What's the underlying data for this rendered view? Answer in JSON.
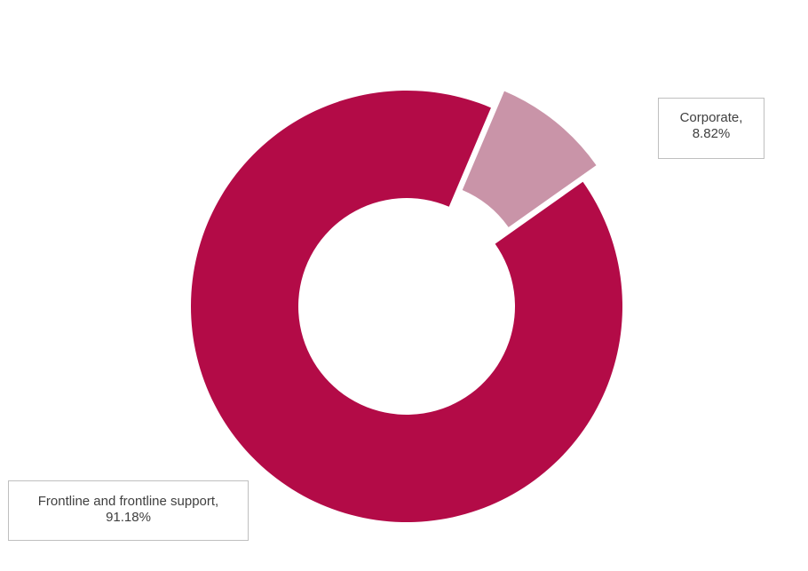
{
  "chart_data": {
    "type": "pie",
    "variant": "doughnut",
    "exploded_slice": "Corporate",
    "slices": [
      {
        "name": "Corporate",
        "value": 8.82,
        "label_line1": "Corporate,",
        "label_line2": "8.82%",
        "color": "#c994a8"
      },
      {
        "name": "Frontline and frontline support",
        "value": 91.18,
        "label_line1": "Frontline and frontline support,",
        "label_line2": "91.18%",
        "color": "#b30b47"
      }
    ]
  }
}
